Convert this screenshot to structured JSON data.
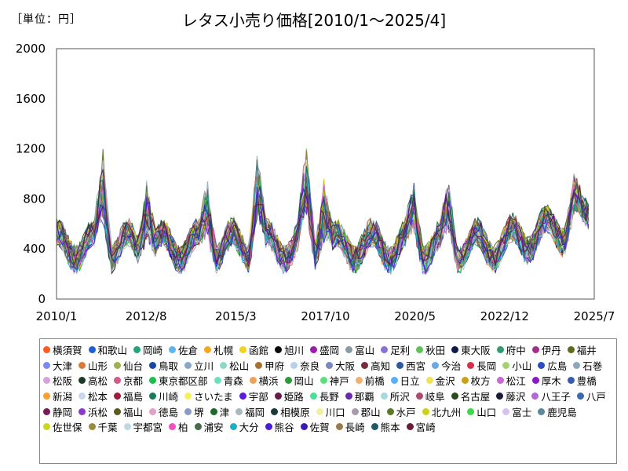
{
  "unit_label": "［単位：円］",
  "chart_data": {
    "type": "line",
    "title": "レタス小売り価格[2010/1～2025/4]",
    "xlabel": "",
    "ylabel": "",
    "xlim": [
      "2010/1",
      "2025/7"
    ],
    "ylim": [
      0,
      2000
    ],
    "x_ticks": [
      "2010/1",
      "2012/8",
      "2015/3",
      "2017/10",
      "2020/5",
      "2022/12",
      "2025/7"
    ],
    "y_ticks": [
      0,
      400,
      800,
      1200,
      1600,
      2000
    ],
    "grid": false,
    "legend": "bottom",
    "series": [
      {
        "name": "横須賀",
        "color": "#ff5a1f"
      },
      {
        "name": "和歌山",
        "color": "#1f5fd6"
      },
      {
        "name": "岡崎",
        "color": "#1ea87a"
      },
      {
        "name": "佐倉",
        "color": "#5bb5f0"
      },
      {
        "name": "札幌",
        "color": "#f5a623"
      },
      {
        "name": "函館",
        "color": "#f2d41a"
      },
      {
        "name": "旭川",
        "color": "#0a0a0a"
      },
      {
        "name": "盛岡",
        "color": "#9b1fa8"
      },
      {
        "name": "富山",
        "color": "#8a9ba8"
      },
      {
        "name": "足利",
        "color": "#8870d8"
      },
      {
        "name": "秋田",
        "color": "#5ec45a"
      },
      {
        "name": "東大阪",
        "color": "#101a4a"
      },
      {
        "name": "府中",
        "color": "#2f9e6f"
      },
      {
        "name": "伊丹",
        "color": "#a0308c"
      },
      {
        "name": "福井",
        "color": "#5f6b1a"
      },
      {
        "name": "大津",
        "color": "#7a8af0"
      },
      {
        "name": "山形",
        "color": "#d87a3a"
      },
      {
        "name": "仙台",
        "color": "#a0b04a"
      },
      {
        "name": "鳥取",
        "color": "#1a48a8"
      },
      {
        "name": "立川",
        "color": "#8aa6c8"
      },
      {
        "name": "松山",
        "color": "#8fd8c8"
      },
      {
        "name": "甲府",
        "color": "#a8702a"
      },
      {
        "name": "奈良",
        "color": "#b8d0f0"
      },
      {
        "name": "大阪",
        "color": "#7a88c0"
      },
      {
        "name": "高知",
        "color": "#7a2a3a"
      },
      {
        "name": "西宮",
        "color": "#2a5aa8"
      },
      {
        "name": "今治",
        "color": "#6aa8e8"
      },
      {
        "name": "長岡",
        "color": "#d8304a"
      },
      {
        "name": "小山",
        "color": "#a8d070"
      },
      {
        "name": "広島",
        "color": "#2a4ac8"
      },
      {
        "name": "石巻",
        "color": "#8aa8b8"
      },
      {
        "name": "松阪",
        "color": "#d8a0e0"
      },
      {
        "name": "高松",
        "color": "#1a3a2a"
      },
      {
        "name": "京都",
        "color": "#d05a8a"
      },
      {
        "name": "東京都区部",
        "color": "#1ac04a"
      },
      {
        "name": "青森",
        "color": "#6ae0c0"
      },
      {
        "name": "横浜",
        "color": "#f0a05a"
      },
      {
        "name": "岡山",
        "color": "#2a9a3a"
      },
      {
        "name": "神戸",
        "color": "#5ae07a"
      },
      {
        "name": "前橋",
        "color": "#f0b070"
      },
      {
        "name": "日立",
        "color": "#5ab0f8"
      },
      {
        "name": "金沢",
        "color": "#f0e05a"
      },
      {
        "name": "枚方",
        "color": "#c8a01a"
      },
      {
        "name": "松江",
        "color": "#c86ad0"
      },
      {
        "name": "厚木",
        "color": "#8a1ac8"
      },
      {
        "name": "豊橋",
        "color": "#3a5ab0"
      },
      {
        "name": "新潟",
        "color": "#f8a030"
      },
      {
        "name": "松本",
        "color": "#c8d8e8"
      },
      {
        "name": "福島",
        "color": "#a01a3a"
      },
      {
        "name": "川崎",
        "color": "#1a7a5a"
      },
      {
        "name": "さいたま",
        "color": "#f8f05a"
      },
      {
        "name": "宇部",
        "color": "#5a1ae0"
      },
      {
        "name": "姫路",
        "color": "#6a1a4a"
      },
      {
        "name": "長野",
        "color": "#4ae09a"
      },
      {
        "name": "那覇",
        "color": "#6a2ab0"
      },
      {
        "name": "所沢",
        "color": "#a8d8e0"
      },
      {
        "name": "岐阜",
        "color": "#b04a6a"
      },
      {
        "name": "名古屋",
        "color": "#2a4a1a"
      },
      {
        "name": "藤沢",
        "color": "#1a1a3a"
      },
      {
        "name": "八王子",
        "color": "#b06ad0"
      },
      {
        "name": "八戸",
        "color": "#3a6ab0"
      },
      {
        "name": "静岡",
        "color": "#7a1a5a"
      },
      {
        "name": "浜松",
        "color": "#8a3ac8"
      },
      {
        "name": "福山",
        "color": "#5a5a1a"
      },
      {
        "name": "徳島",
        "color": "#e0a0c8"
      },
      {
        "name": "堺",
        "color": "#8a9ac8"
      },
      {
        "name": "津",
        "color": "#1a6a2a"
      },
      {
        "name": "福岡",
        "color": "#a8b8c0"
      },
      {
        "name": "相模原",
        "color": "#1a3a3a"
      },
      {
        "name": "川口",
        "color": "#f0f0a0"
      },
      {
        "name": "郡山",
        "color": "#a89ab0"
      },
      {
        "name": "水戸",
        "color": "#5a7a2a"
      },
      {
        "name": "北九州",
        "color": "#d0d01a"
      },
      {
        "name": "山口",
        "color": "#3ad84a"
      },
      {
        "name": "富士",
        "color": "#d8c0f0"
      },
      {
        "name": "鹿児島",
        "color": "#5a8a9a"
      },
      {
        "name": "佐世保",
        "color": "#c8d81a"
      },
      {
        "name": "千葉",
        "color": "#9a8a3a"
      },
      {
        "name": "宇都宮",
        "color": "#c0d8e0"
      },
      {
        "name": "柏",
        "color": "#f050c0"
      },
      {
        "name": "浦安",
        "color": "#4a6a4a"
      },
      {
        "name": "大分",
        "color": "#1ab0c0"
      },
      {
        "name": "熊谷",
        "color": "#4a1ad8"
      },
      {
        "name": "佐賀",
        "color": "#3a1ab0"
      },
      {
        "name": "長崎",
        "color": "#9a7a4a"
      },
      {
        "name": "熊本",
        "color": "#1a5a6a"
      },
      {
        "name": "宮崎",
        "color": "#6a1a3a"
      }
    ]
  }
}
